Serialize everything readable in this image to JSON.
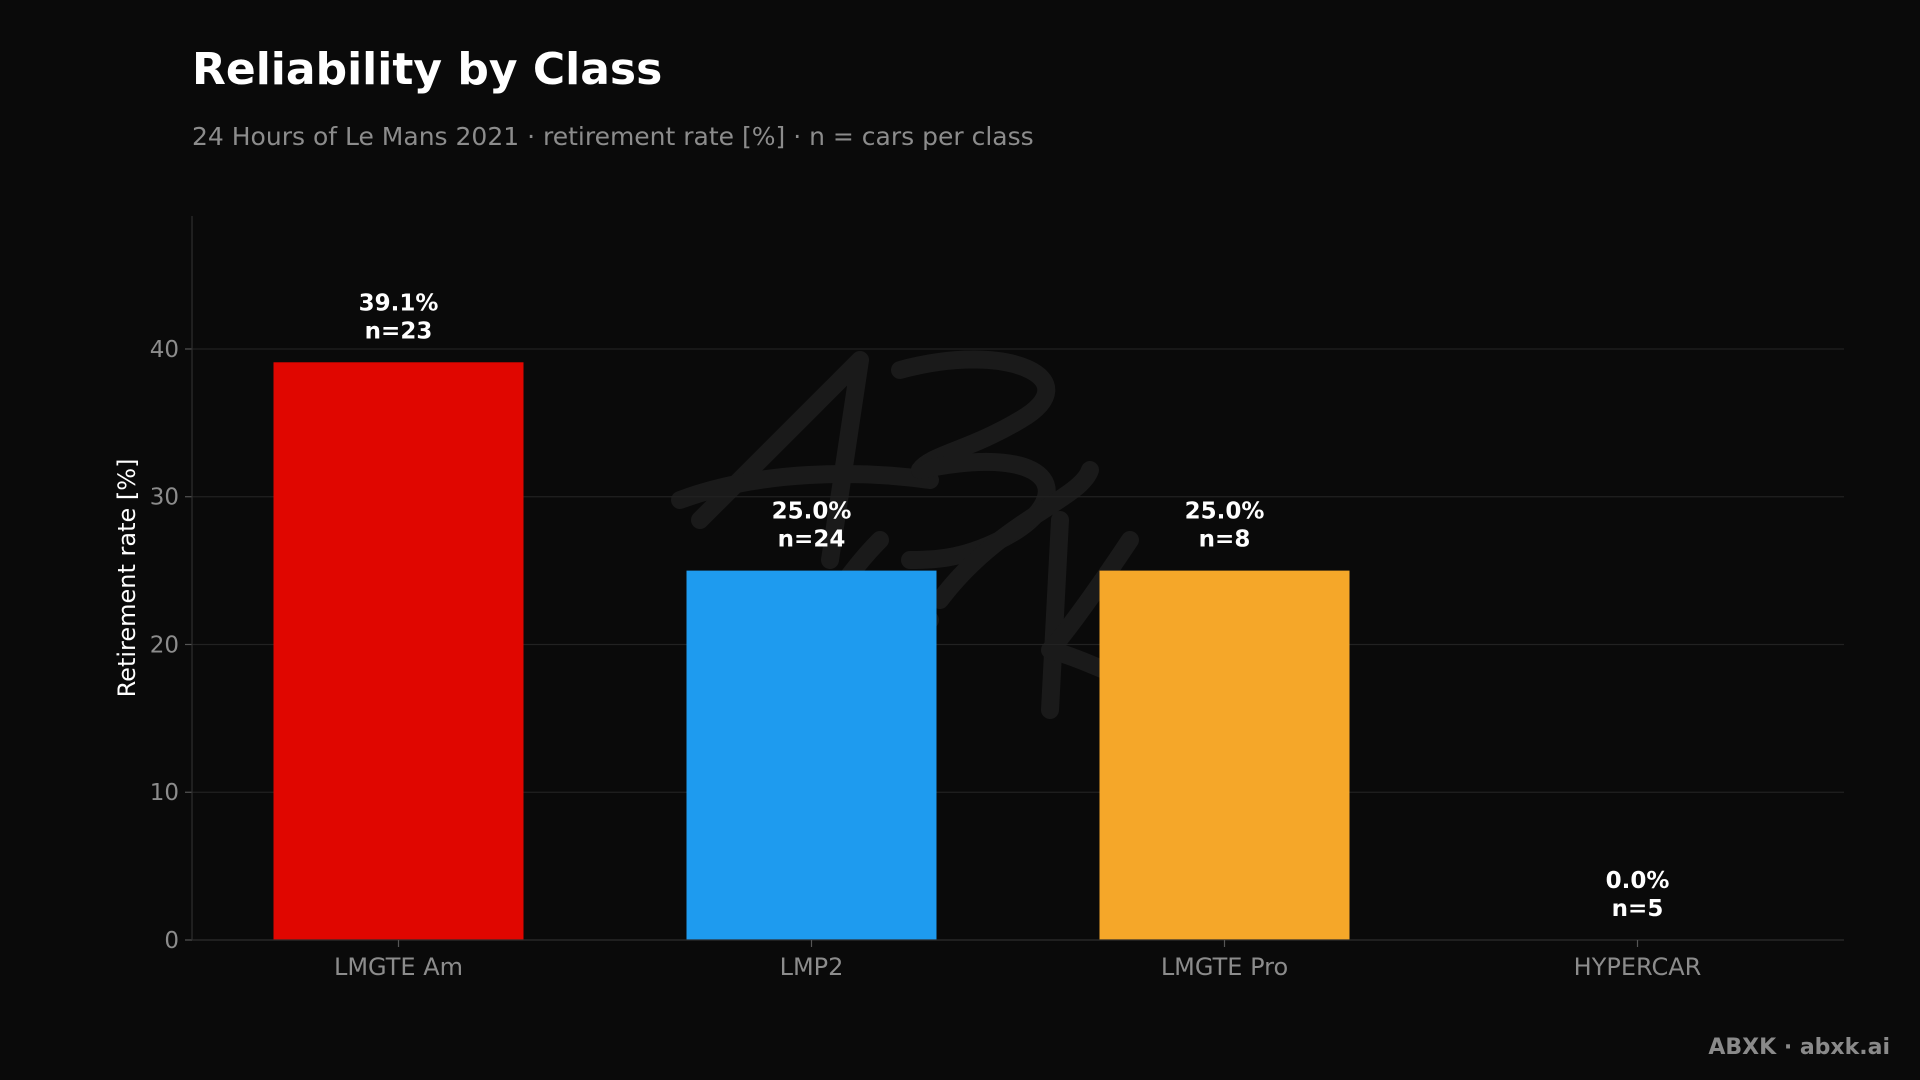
{
  "header": {
    "title": "Reliability by Class",
    "subtitle": "24 Hours of Le Mans 2021 · retirement rate [%] · n = cars per class"
  },
  "chart_data": {
    "type": "bar",
    "categories": [
      "LMGTE Am",
      "LMP2",
      "LMGTE Pro",
      "HYPERCAR"
    ],
    "values": [
      39.1,
      25.0,
      25.0,
      0.0
    ],
    "counts": [
      23,
      24,
      8,
      5
    ],
    "value_labels": [
      "39.1%",
      "25.0%",
      "25.0%",
      "0.0%"
    ],
    "count_labels": [
      "n=23",
      "n=24",
      "n=8",
      "n=5"
    ],
    "colors": [
      "#e00600",
      "#1e9bef",
      "#f5a729",
      "#d6d6d6"
    ],
    "ylabel": "Retirement rate [%]",
    "xlabel": "",
    "ylim": [
      0,
      49
    ],
    "yticks": [
      0,
      10,
      20,
      30,
      40
    ],
    "grid": true,
    "legend": "none"
  },
  "watermark": {
    "text": "ABXK"
  },
  "footer": {
    "credit": "ABXK · abxk.ai"
  }
}
